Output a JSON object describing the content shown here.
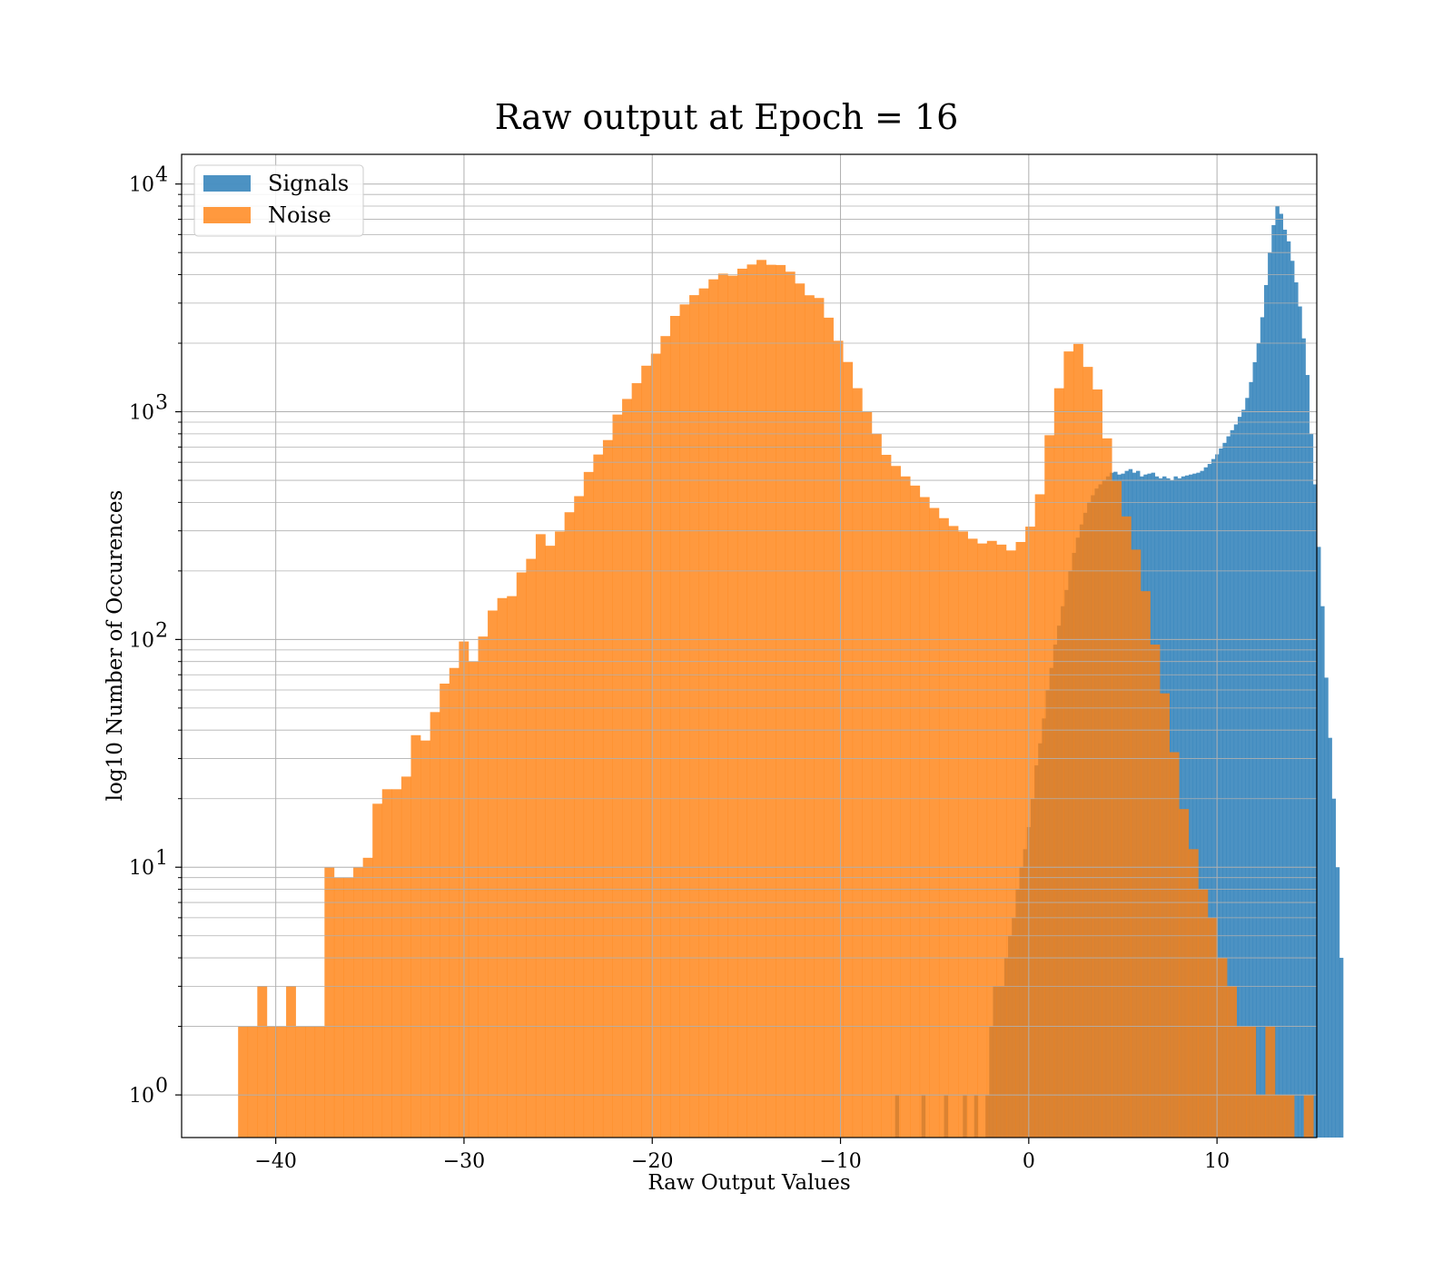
{
  "chart_data": {
    "type": "bar",
    "title": "Raw output at Epoch = 16",
    "xlabel": "Raw Output Values",
    "ylabel": "log10 Number of Occurences",
    "xlim": [
      -45,
      15.3
    ],
    "ylim": [
      0.65,
      13500
    ],
    "y_scale": "log",
    "grid": true,
    "legend_position": "top-left",
    "x_ticks": [
      {
        "value": -40,
        "label": "−40"
      },
      {
        "value": -30,
        "label": "−30"
      },
      {
        "value": -20,
        "label": "−20"
      },
      {
        "value": -10,
        "label": "−10"
      },
      {
        "value": 0,
        "label": "0"
      },
      {
        "value": 10,
        "label": "10"
      }
    ],
    "y_ticks": [
      {
        "value": 1,
        "base": "10",
        "exp": "0"
      },
      {
        "value": 10,
        "base": "10",
        "exp": "1"
      },
      {
        "value": 100,
        "base": "10",
        "exp": "2"
      },
      {
        "value": 1000,
        "base": "10",
        "exp": "3"
      },
      {
        "value": 10000,
        "base": "10",
        "exp": "4"
      }
    ],
    "series": [
      {
        "name": "Signals",
        "color": "#1f77b4",
        "bin_start": -7.1,
        "bin_width": 0.2,
        "values": [
          1,
          0,
          0,
          0,
          0,
          0,
          0,
          1,
          0,
          0,
          0,
          0,
          0,
          1,
          0,
          0,
          0,
          0,
          1,
          0,
          0,
          1,
          0,
          0,
          1,
          2,
          3,
          3,
          3,
          4,
          5,
          6,
          8,
          10,
          12,
          15,
          20,
          28,
          35,
          45,
          60,
          75,
          95,
          115,
          140,
          165,
          200,
          240,
          280,
          320,
          360,
          400,
          430,
          460,
          480,
          500,
          520,
          540,
          545,
          530,
          535,
          550,
          560,
          540,
          550,
          520,
          530,
          535,
          540,
          520,
          510,
          520,
          510,
          500,
          520,
          510,
          520,
          525,
          530,
          535,
          540,
          550,
          570,
          590,
          620,
          650,
          690,
          730,
          780,
          830,
          880,
          950,
          1020,
          1150,
          1350,
          1650,
          2000,
          2600,
          3600,
          5000,
          6600,
          8000,
          7400,
          6300,
          5600,
          4600,
          3700,
          2900,
          2100,
          1450,
          800,
          480,
          255,
          140,
          68,
          37,
          20,
          10,
          4
        ],
        "opacity": 0.8
      },
      {
        "name": "Noise",
        "color": "#ff7f0e",
        "bin_start": -42.0,
        "bin_width": 0.51,
        "values": [
          2,
          2,
          3,
          2,
          2,
          3,
          2,
          2,
          2,
          10,
          9,
          9,
          10,
          11,
          19,
          22,
          22,
          25,
          38,
          36,
          48,
          64,
          75,
          98,
          80,
          103,
          134,
          152,
          155,
          197,
          226,
          290,
          258,
          298,
          362,
          426,
          544,
          649,
          751,
          972,
          1138,
          1335,
          1593,
          1799,
          2149,
          2635,
          2960,
          3251,
          3480,
          3815,
          4040,
          3960,
          4248,
          4432,
          4641,
          4420,
          4409,
          4121,
          3658,
          3247,
          3159,
          2589,
          2049,
          1654,
          1269,
          1006,
          799,
          647,
          578,
          520,
          474,
          422,
          378,
          341,
          315,
          298,
          277,
          264,
          271,
          261,
          246,
          268,
          313,
          434,
          789,
          1268,
          1840,
          1985,
          1574,
          1253,
          764,
          496,
          347,
          248,
          163,
          95,
          58,
          32,
          18,
          12,
          8,
          6,
          4,
          3,
          2,
          2,
          1,
          2,
          1,
          1,
          0,
          1
        ],
        "opacity": 0.8
      }
    ]
  }
}
